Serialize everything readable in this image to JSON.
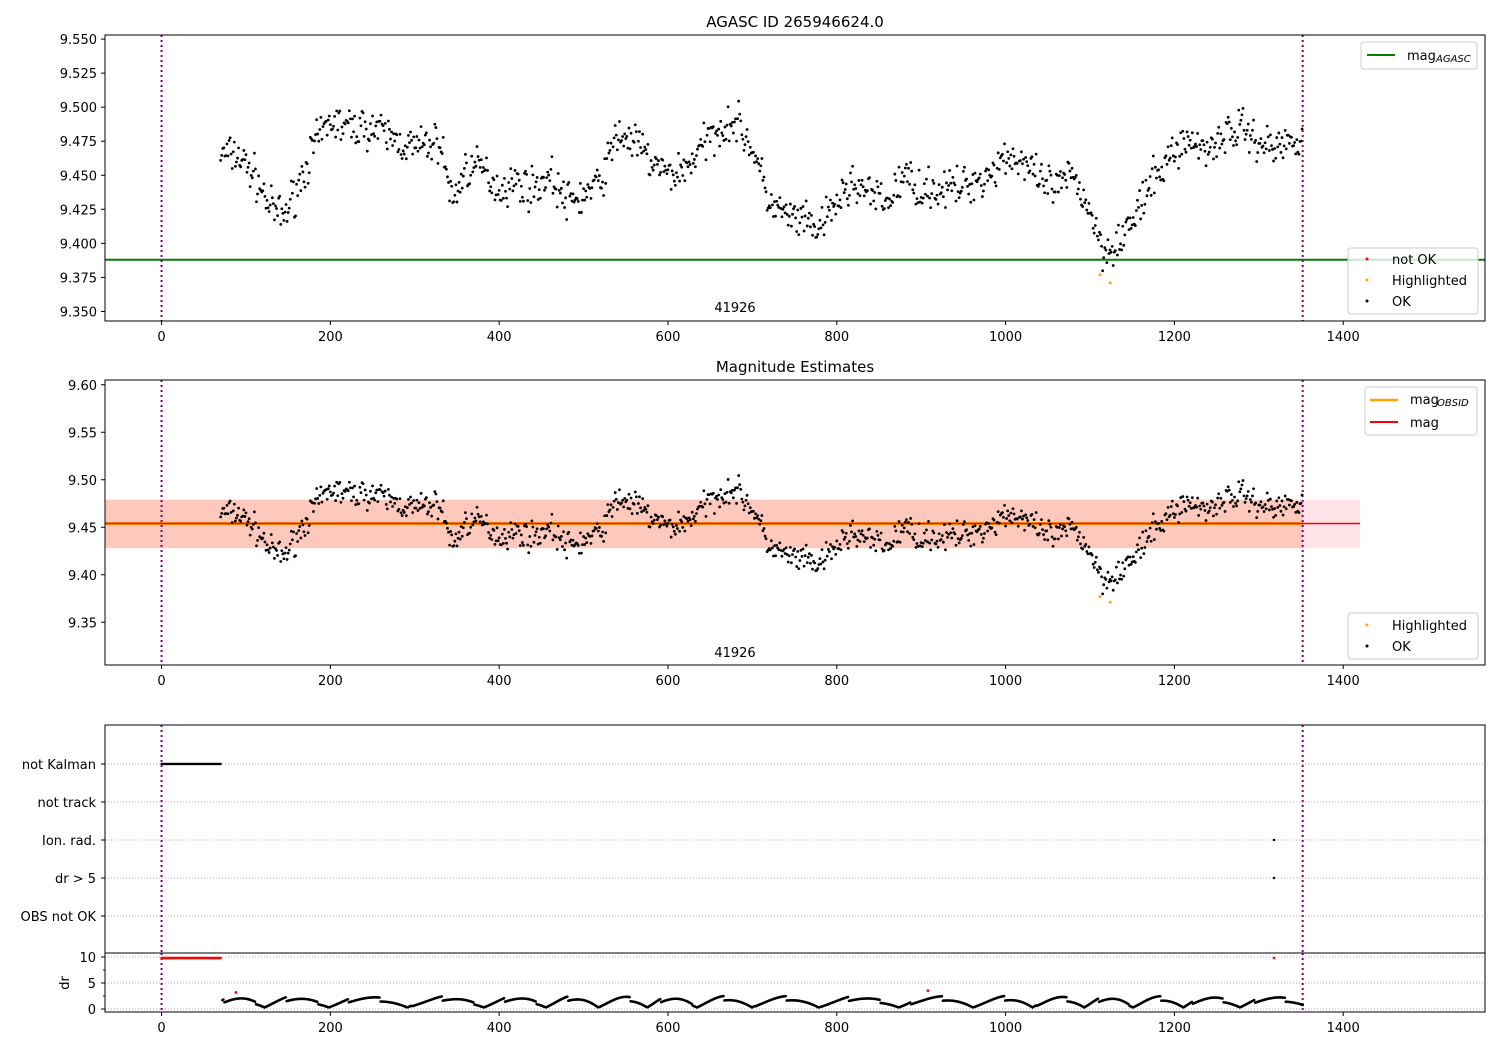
{
  "chart_data": [
    {
      "type": "scatter",
      "title": "AGASC ID 265946624.0",
      "xlim": [
        -67,
        1568
      ],
      "ylim": [
        9.343,
        9.553
      ],
      "xticks": [
        "0",
        "200",
        "400",
        "600",
        "800",
        "1000",
        "1200",
        "1400"
      ],
      "yticks": [
        "9.350",
        "9.375",
        "9.400",
        "9.425",
        "9.450",
        "9.475",
        "9.500",
        "9.525",
        "9.550"
      ],
      "agasc_mag": 9.388,
      "annotation": {
        "text": "41926",
        "x": 675
      },
      "obs_bounds": [
        0,
        1352
      ],
      "legend_top": [
        "mag_AGASC"
      ],
      "legend_top_label": "mag",
      "legend_top_sub": "AGASC",
      "legend_bottom": [
        "not OK",
        "Highlighted",
        "OK"
      ],
      "mag_curve_x": [
        70,
        90,
        110,
        130,
        145,
        160,
        180,
        200,
        220,
        250,
        280,
        300,
        330,
        345,
        360,
        380,
        400,
        420,
        440,
        460,
        480,
        500,
        520,
        540,
        560,
        580,
        600,
        620,
        640,
        660,
        680,
        700,
        720,
        740,
        760,
        780,
        800,
        820,
        840,
        860,
        880,
        900,
        920,
        940,
        960,
        980,
        1000,
        1020,
        1040,
        1060,
        1080,
        1100,
        1115,
        1130,
        1150,
        1170,
        1190,
        1210,
        1240,
        1260,
        1280,
        1300,
        1320,
        1352
      ],
      "mag_curve_y": [
        9.465,
        9.465,
        9.45,
        9.425,
        9.42,
        9.44,
        9.47,
        9.49,
        9.485,
        9.485,
        9.475,
        9.47,
        9.475,
        9.43,
        9.455,
        9.455,
        9.44,
        9.445,
        9.44,
        9.45,
        9.43,
        9.435,
        9.445,
        9.48,
        9.475,
        9.46,
        9.45,
        9.455,
        9.47,
        9.485,
        9.49,
        9.47,
        9.43,
        9.42,
        9.415,
        9.41,
        9.43,
        9.445,
        9.435,
        9.43,
        9.45,
        9.44,
        9.44,
        9.44,
        9.445,
        9.45,
        9.465,
        9.46,
        9.445,
        9.44,
        9.45,
        9.425,
        9.395,
        9.4,
        9.415,
        9.44,
        9.46,
        9.475,
        9.47,
        9.48,
        9.485,
        9.475,
        9.47,
        9.48
      ],
      "highlighted": [
        [
          1112,
          9.377
        ],
        [
          1124,
          9.371
        ]
      ]
    },
    {
      "type": "scatter",
      "title": "Magnitude Estimates",
      "xlim": [
        -67,
        1568
      ],
      "ylim": [
        9.305,
        9.605
      ],
      "yticks": [
        "9.35",
        "9.40",
        "9.45",
        "9.50",
        "9.55",
        "9.60"
      ],
      "mag": 9.454,
      "mag_obsid": 9.454,
      "band": [
        9.428,
        9.479
      ],
      "band_extent_x": [
        -67,
        1420
      ],
      "annotation": {
        "text": "41926",
        "x": 675
      },
      "legend_top": [
        "mag_OBSID",
        "mag"
      ],
      "legend_obsid_label": "mag",
      "legend_obsid_sub": "OBSID",
      "legend_mag_label": "mag",
      "legend_bottom": [
        "Highlighted",
        "OK"
      ]
    },
    {
      "type": "scatter",
      "categories": [
        "not Kalman",
        "not track",
        "Ion. rad.",
        "dr > 5",
        "OBS not OK"
      ],
      "flags": {
        "not Kalman": [
          [
            0,
            70
          ]
        ],
        "Ion. rad.": [
          [
            1318,
            1318
          ]
        ],
        "dr > 5": [
          [
            1318,
            1318
          ]
        ]
      },
      "dr_ylabel": "dr",
      "dr_yticks": [
        "0",
        "5",
        "10"
      ],
      "dr_ylim": [
        -0.6,
        10.8
      ],
      "dr_clipped_red": [
        [
          0,
          70
        ],
        [
          1318,
          1318
        ]
      ],
      "dr_red_points": [
        [
          88,
          3.2
        ],
        [
          908,
          3.5
        ]
      ]
    }
  ],
  "colors": {
    "ok": "#000000",
    "not_ok": "#ff0000",
    "highlighted": "#ffa500",
    "agasc": "#008000",
    "mag": "#ff0000",
    "obsid": "#ffa500",
    "bounds": "#800080",
    "band_obsid": "#ffa07a",
    "band_mag": "#ffc0cb"
  }
}
